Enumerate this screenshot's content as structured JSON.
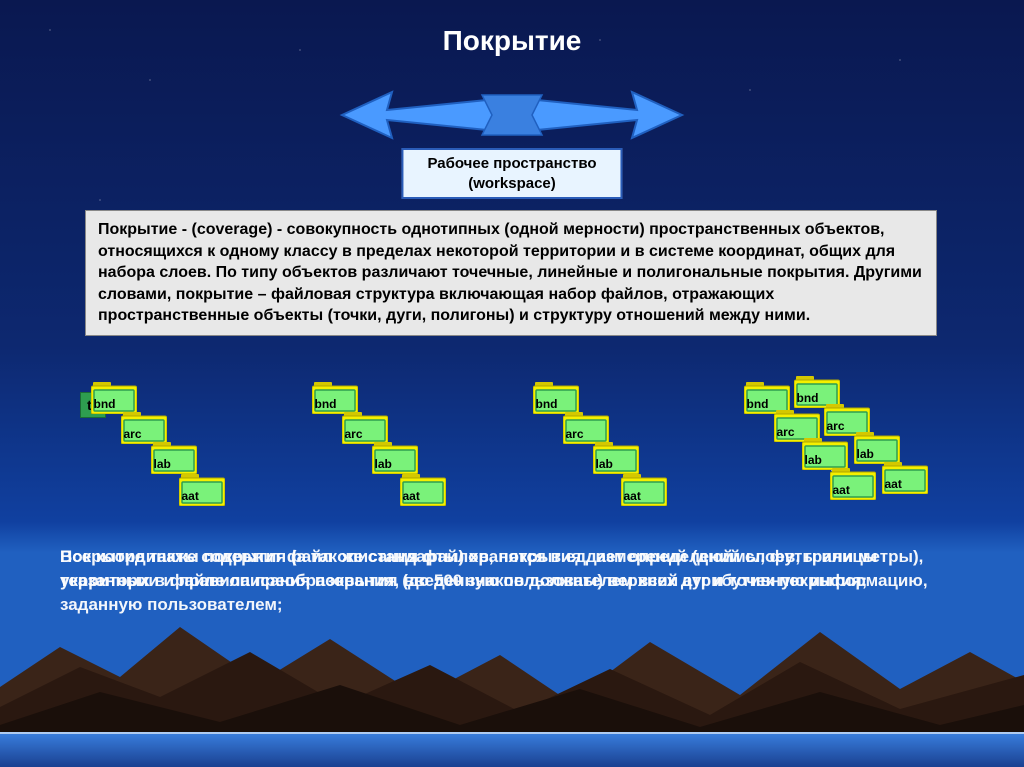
{
  "title": "Покрытие",
  "workspace": {
    "line1": "Рабочее пространство",
    "line2": "(workspace)"
  },
  "definition": "Покрытие - (coverage) - совокупность однотипных (одной мерности) пространственных объектов, относящихся к одному классу  в пределах некоторой территории и в системе координат, общих для набора слоев. По типу объектов различают точечные, линейные и полигональные покрытия. Другими словами, покрытие – файловая структура включающая набор файлов, отражающих пространственные объекты (точки, дуги, полигоны) и структуру отношений между ними.",
  "tic_label": "tic",
  "folders": {
    "bnd": "bnd",
    "arc": "arc",
    "lab": "lab",
    "aat": "aat"
  },
  "colors": {
    "banner_fill": "#4a9aff",
    "banner_stroke": "#2060c0",
    "folder_tab": "#d4c800",
    "folder_body": "#f5f000",
    "folder_face": "#7af27a",
    "folder_face_border": "#2e9e4f",
    "mountain1": "#1a0f0a",
    "mountain2": "#2a1810",
    "mountain3": "#3a2418"
  },
  "overlap_layers": [
    "Все координаты покрытия (а так же стандарты) хранятся в ед. измерений (дюймы, футы или метры), указанных в файле описания покрытия (до 500 знаков должны) верхний атрибутивную информацию, заданную пользователем;",
    "Покрытие также содержит файл описания файлов, покрытия дает определений слоев, границы территории и правила преобразования, введенную пользователем всех дуг и точек покрытия;"
  ]
}
